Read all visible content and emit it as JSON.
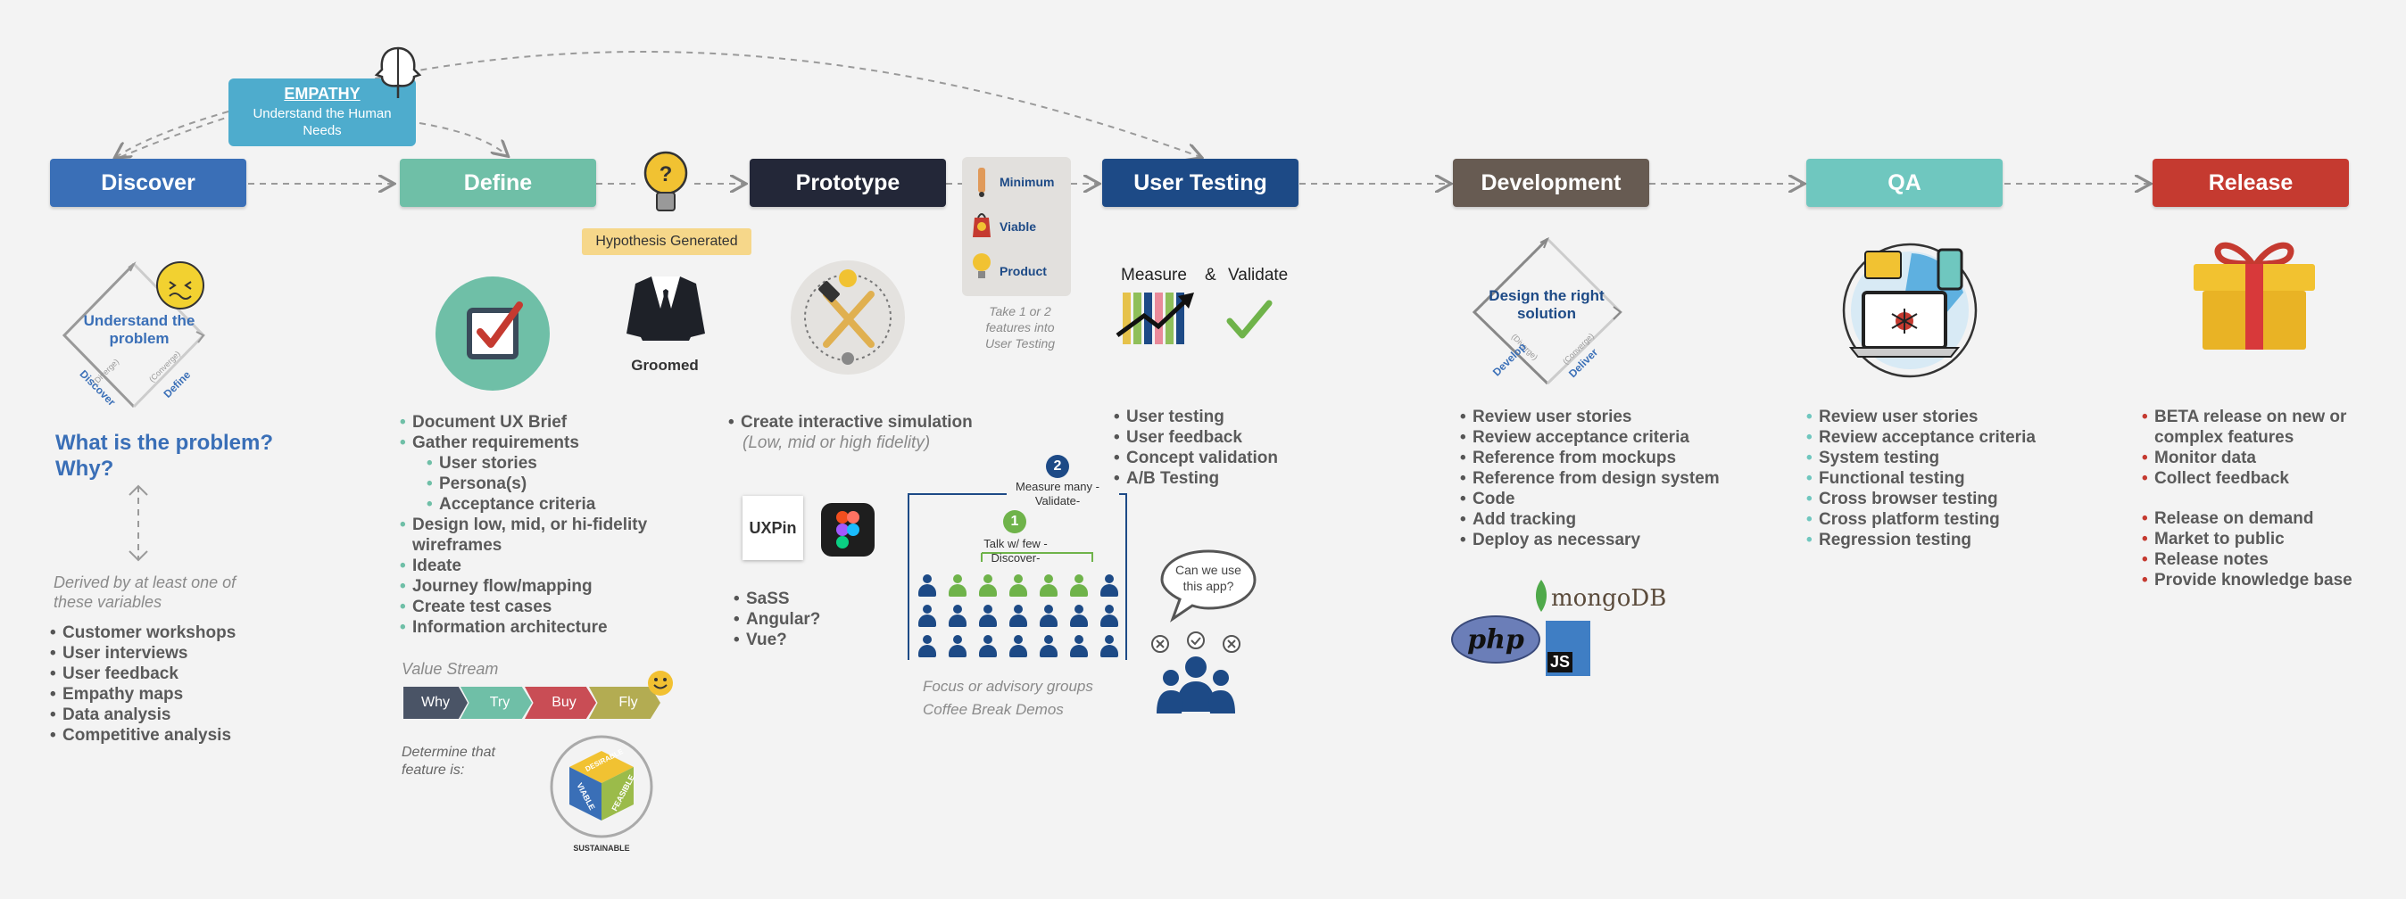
{
  "colors": {
    "discover": "#3a6fb7",
    "define": "#6fbfa7",
    "prototype": "#232738",
    "user_testing": "#1d4a86",
    "development": "#675b52",
    "qa": "#6fc7bf",
    "release": "#c53a30",
    "empathy": "#4eaccd",
    "hypothesis": "#f6d78a",
    "mvp_bg": "#e2e0dd"
  },
  "empathy": {
    "title": "EMPATHY",
    "subtitle": "Understand the Human Needs"
  },
  "stages": [
    "Discover",
    "Define",
    "Prototype",
    "User Testing",
    "Development",
    "QA",
    "Release"
  ],
  "hypothesis": "Hypothesis Generated",
  "groomed": "Groomed",
  "mvp": {
    "m": "Minimum",
    "v": "Viable",
    "p": "Product",
    "note": "Take 1 or 2 features into User Testing"
  },
  "discover": {
    "diamond": {
      "label": "Understand the problem",
      "diverge": "(Diverge)",
      "converge": "(Converge)",
      "left": "Discover",
      "right": "Define"
    },
    "question": "What is the problem? Why?",
    "derived": "Derived by at least one of these variables",
    "items": [
      "Customer workshops",
      "User interviews",
      "User feedback",
      "Empathy maps",
      "Data analysis",
      "Competitive analysis"
    ]
  },
  "define": {
    "items": [
      {
        "t": "Document UX Brief",
        "sub": false
      },
      {
        "t": "Gather requirements",
        "sub": false
      },
      {
        "t": "User stories",
        "sub": true
      },
      {
        "t": "Persona(s)",
        "sub": true
      },
      {
        "t": "Acceptance criteria",
        "sub": true
      },
      {
        "t": "Design low, mid, or hi-fidelity wireframes",
        "sub": false
      },
      {
        "t": "Ideate",
        "sub": false
      },
      {
        "t": "Journey flow/mapping",
        "sub": false
      },
      {
        "t": "Create test cases",
        "sub": false
      },
      {
        "t": "Information architecture",
        "sub": false
      }
    ],
    "value_stream": "Value Stream",
    "vs_steps": [
      "Why",
      "Try",
      "Buy",
      "Fly"
    ],
    "determine": "Determine that feature is:",
    "cube": {
      "desirable": "DESIRABLE",
      "viable": "VIABLE",
      "feasible": "FEASIBLE",
      "sustainable": "SUSTAINABLE"
    }
  },
  "prototype": {
    "item": "Create interactive simulation",
    "fidelity": "(Low, mid or high fidelity)",
    "uxpin": "UXPin",
    "tech": [
      "SaSS",
      "Angular?",
      "Vue?"
    ]
  },
  "groups": {
    "badge1": "1",
    "badge2": "2",
    "talk": "Talk w/ few -Discover-",
    "measure_many": "Measure many -Validate-",
    "focus": "Focus or advisory groups",
    "coffee": "Coffee Break Demos",
    "bubble": "Can we use this app?"
  },
  "user_testing": {
    "measure": "Measure",
    "amp": "&",
    "validate": "Validate",
    "items": [
      "User testing",
      "User feedback",
      "Concept validation",
      "A/B Testing"
    ]
  },
  "development": {
    "diamond": {
      "label": "Design the right solution",
      "diverge": "(Diverge)",
      "converge": "(Converge)",
      "left": "Develop",
      "right": "Deliver"
    },
    "items": [
      "Review user stories",
      "Review acceptance criteria",
      "Reference from mockups",
      "Reference from design system",
      "Code",
      "Add tracking",
      "Deploy as necessary"
    ],
    "php": "php",
    "mongo": "mongoDB",
    "js": "JS"
  },
  "qa": {
    "items": [
      "Review user stories",
      "Review acceptance criteria",
      "System testing",
      "Functional testing",
      "Cross browser testing",
      "Cross platform testing",
      "Regression testing"
    ]
  },
  "release": {
    "items1": [
      "BETA release on new or complex features",
      "Monitor data",
      "Collect feedback"
    ],
    "items2": [
      "Release on demand",
      "Market to public",
      "Release notes",
      "Provide knowledge base"
    ]
  }
}
